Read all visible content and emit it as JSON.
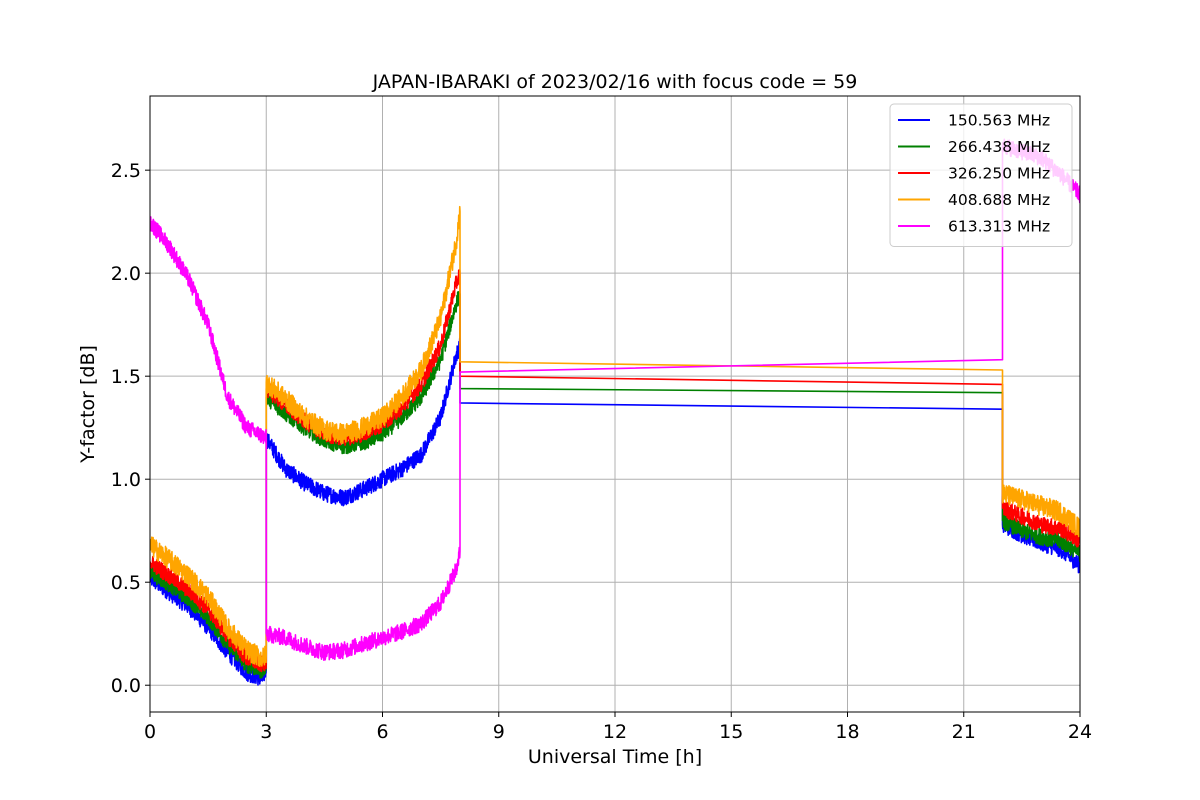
{
  "chart_data": {
    "type": "line",
    "title": "JAPAN-IBARAKI of 2023/02/16 with focus code = 59",
    "xlabel": "Universal Time [h]",
    "ylabel": "Y-factor [dB]",
    "xlim": [
      0,
      24
    ],
    "ylim": [
      -0.13,
      2.86
    ],
    "xticks": [
      0,
      3,
      6,
      9,
      12,
      15,
      18,
      21,
      24
    ],
    "xtick_labels": [
      "0",
      "3",
      "6",
      "9",
      "12",
      "15",
      "18",
      "21",
      "24"
    ],
    "yticks": [
      0.0,
      0.5,
      1.0,
      1.5,
      2.0,
      2.5
    ],
    "ytick_labels": [
      "0.0",
      "0.5",
      "1.0",
      "1.5",
      "2.0",
      "2.5"
    ],
    "grid": true,
    "legend_position": "top-right",
    "series": [
      {
        "name": "150.563 MHz",
        "color": "#0000ff",
        "noise": 0.04,
        "segments": [
          {
            "x": [
              0,
              0.5,
              1.0,
              1.5,
              2.0,
              2.5,
              2.9,
              3.0
            ],
            "y": [
              0.52,
              0.45,
              0.38,
              0.28,
              0.16,
              0.06,
              0.03,
              0.08
            ]
          },
          {
            "x": [
              3.0,
              3.5,
              4.0,
              4.5,
              5.0,
              5.5,
              6.0,
              6.5,
              7.0,
              7.5,
              7.9,
              8.0
            ],
            "y": [
              1.2,
              1.05,
              0.98,
              0.93,
              0.91,
              0.95,
              1.0,
              1.05,
              1.12,
              1.3,
              1.6,
              1.65
            ]
          },
          {
            "x": [
              8.0,
              22.0
            ],
            "y": [
              1.37,
              1.34
            ]
          },
          {
            "x": [
              22.0,
              22.5,
              23.0,
              23.5,
              24.0
            ],
            "y": [
              0.78,
              0.73,
              0.69,
              0.66,
              0.58
            ]
          }
        ]
      },
      {
        "name": "266.438 MHz",
        "color": "#008000",
        "noise": 0.04,
        "segments": [
          {
            "x": [
              0,
              0.5,
              1.0,
              1.5,
              2.0,
              2.5,
              2.9,
              3.0
            ],
            "y": [
              0.55,
              0.49,
              0.42,
              0.33,
              0.2,
              0.1,
              0.07,
              0.1
            ]
          },
          {
            "x": [
              3.0,
              3.5,
              4.0,
              4.5,
              5.0,
              5.5,
              6.0,
              6.5,
              7.0,
              7.5,
              7.9,
              8.0
            ],
            "y": [
              1.4,
              1.32,
              1.25,
              1.19,
              1.16,
              1.18,
              1.22,
              1.3,
              1.4,
              1.58,
              1.85,
              1.9
            ]
          },
          {
            "x": [
              8.0,
              22.0
            ],
            "y": [
              1.44,
              1.42
            ]
          },
          {
            "x": [
              22.0,
              22.5,
              23.0,
              23.5,
              24.0
            ],
            "y": [
              0.8,
              0.75,
              0.72,
              0.7,
              0.64
            ]
          }
        ]
      },
      {
        "name": "326.250 MHz",
        "color": "#ff0000",
        "noise": 0.04,
        "segments": [
          {
            "x": [
              0,
              0.5,
              1.0,
              1.5,
              2.0,
              2.5,
              2.9,
              3.0
            ],
            "y": [
              0.6,
              0.53,
              0.46,
              0.37,
              0.24,
              0.13,
              0.1,
              0.12
            ]
          },
          {
            "x": [
              3.0,
              3.5,
              4.0,
              4.5,
              5.0,
              5.5,
              6.0,
              6.5,
              7.0,
              7.5,
              7.9,
              8.0
            ],
            "y": [
              1.44,
              1.36,
              1.28,
              1.22,
              1.2,
              1.22,
              1.27,
              1.35,
              1.46,
              1.65,
              1.95,
              2.0
            ]
          },
          {
            "x": [
              8.0,
              22.0
            ],
            "y": [
              1.5,
              1.46
            ]
          },
          {
            "x": [
              22.0,
              22.5,
              23.0,
              23.5,
              24.0
            ],
            "y": [
              0.86,
              0.82,
              0.78,
              0.76,
              0.7
            ]
          }
        ]
      },
      {
        "name": "408.688 MHz",
        "color": "#ffa500",
        "noise": 0.05,
        "segments": [
          {
            "x": [
              0,
              0.5,
              1.0,
              1.5,
              2.0,
              2.5,
              2.9,
              3.0
            ],
            "y": [
              0.68,
              0.61,
              0.53,
              0.43,
              0.28,
              0.17,
              0.13,
              0.15
            ]
          },
          {
            "x": [
              3.0,
              3.5,
              4.0,
              4.5,
              5.0,
              5.5,
              6.0,
              6.5,
              7.0,
              7.5,
              7.9,
              8.0
            ],
            "y": [
              1.47,
              1.39,
              1.3,
              1.24,
              1.22,
              1.25,
              1.3,
              1.4,
              1.53,
              1.78,
              2.15,
              2.3
            ]
          },
          {
            "x": [
              8.0,
              22.0
            ],
            "y": [
              1.57,
              1.53
            ]
          },
          {
            "x": [
              22.0,
              22.5,
              23.0,
              23.5,
              24.0
            ],
            "y": [
              0.93,
              0.9,
              0.87,
              0.84,
              0.76
            ]
          }
        ]
      },
      {
        "name": "613.313 MHz",
        "color": "#ff00ff",
        "noise": 0.04,
        "segments": [
          {
            "x": [
              0,
              0.5,
              1.0,
              1.5,
              2.0,
              2.5,
              3.0
            ],
            "y": [
              2.25,
              2.13,
              1.97,
              1.75,
              1.4,
              1.25,
              1.2
            ]
          },
          {
            "x": [
              3.0,
              3.5,
              4.0,
              4.5,
              5.0,
              5.5,
              6.0,
              6.5,
              7.0,
              7.5,
              7.9,
              8.0
            ],
            "y": [
              0.25,
              0.23,
              0.19,
              0.16,
              0.17,
              0.2,
              0.23,
              0.26,
              0.3,
              0.4,
              0.56,
              0.65
            ]
          },
          {
            "x": [
              8.0,
              22.0
            ],
            "y": [
              1.52,
              1.58
            ]
          },
          {
            "x": [
              22.0,
              22.5,
              23.0,
              23.5,
              24.0
            ],
            "y": [
              2.62,
              2.59,
              2.56,
              2.48,
              2.38
            ]
          }
        ]
      }
    ]
  }
}
